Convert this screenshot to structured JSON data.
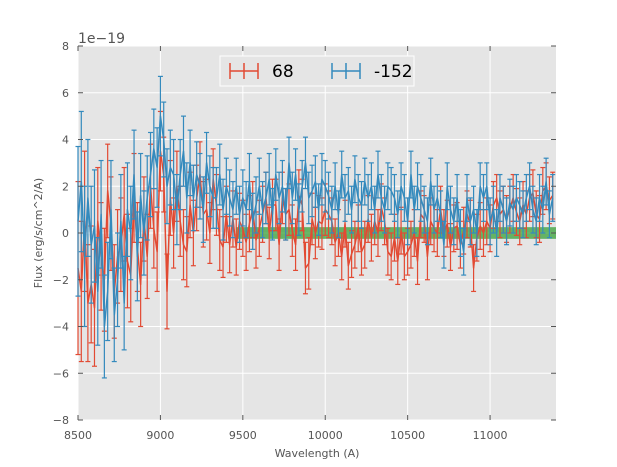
{
  "chart_data": {
    "type": "line",
    "style": "errorbar",
    "title": "",
    "xlabel": "Wavelength (A)",
    "ylabel": "Flux (erg/s/cm^2/A)",
    "y_offset_label": "1e−19",
    "xlim": [
      8500,
      11400
    ],
    "ylim": [
      -8,
      8
    ],
    "xticks": [
      8500,
      9000,
      9500,
      10000,
      10500,
      11000
    ],
    "xtick_labels": [
      "8500",
      "9000",
      "9500",
      "10000",
      "10500",
      "11000"
    ],
    "yticks": [
      -8,
      -6,
      -4,
      -2,
      0,
      2,
      4,
      6,
      8
    ],
    "ytick_labels": [
      "−8",
      "−6",
      "−4",
      "−2",
      "0",
      "2",
      "4",
      "6",
      "8"
    ],
    "grid": true,
    "legend_position": "top-center",
    "x": [
      8500,
      8520,
      8540,
      8560,
      8580,
      8600,
      8620,
      8640,
      8660,
      8680,
      8700,
      8720,
      8740,
      8760,
      8780,
      8800,
      8820,
      8840,
      8860,
      8880,
      8900,
      8920,
      8940,
      8960,
      8980,
      9000,
      9020,
      9040,
      9060,
      9080,
      9100,
      9120,
      9140,
      9160,
      9180,
      9200,
      9220,
      9240,
      9260,
      9280,
      9300,
      9320,
      9340,
      9360,
      9380,
      9400,
      9420,
      9440,
      9460,
      9480,
      9500,
      9520,
      9540,
      9560,
      9580,
      9600,
      9620,
      9640,
      9660,
      9680,
      9700,
      9720,
      9740,
      9760,
      9780,
      9800,
      9820,
      9840,
      9860,
      9880,
      9900,
      9920,
      9940,
      9960,
      9980,
      10000,
      10020,
      10040,
      10060,
      10080,
      10100,
      10120,
      10140,
      10160,
      10180,
      10200,
      10220,
      10240,
      10260,
      10280,
      10300,
      10320,
      10340,
      10360,
      10380,
      10400,
      10420,
      10440,
      10460,
      10480,
      10500,
      10520,
      10540,
      10560,
      10580,
      10600,
      10620,
      10640,
      10660,
      10680,
      10700,
      10720,
      10740,
      10760,
      10780,
      10800,
      10820,
      10840,
      10860,
      10880,
      10900,
      10920,
      10940,
      10960,
      10980,
      11000,
      11020,
      11040,
      11060,
      11080,
      11100,
      11120,
      11140,
      11160,
      11180,
      11200,
      11220,
      11240,
      11260,
      11280,
      11300,
      11320,
      11340,
      11360,
      11380
    ],
    "series": [
      {
        "name": "68",
        "color": "#E24A33",
        "values": [
          -1.5,
          -2.5,
          0.5,
          -3.0,
          -2.2,
          -3.2,
          0.5,
          -1.0,
          -2.0,
          1.8,
          0.4,
          -2.5,
          -1.0,
          -0.5,
          0.8,
          -1.2,
          -1.8,
          1.5,
          -0.6,
          -2.2,
          0.6,
          -1.0,
          2.0,
          0.2,
          -0.8,
          3.5,
          2.5,
          -2.5,
          1.5,
          0.0,
          2.0,
          0.5,
          -0.5,
          -0.8,
          1.2,
          0.0,
          1.5,
          2.5,
          0.8,
          1.0,
          0.0,
          2.3,
          1.2,
          -0.3,
          -0.6,
          0.8,
          -0.5,
          0.6,
          -0.6,
          0.5,
          0.2,
          -0.4,
          0.4,
          1.0,
          -0.3,
          0.2,
          0.8,
          1.5,
          0.0,
          1.2,
          1.2,
          -0.5,
          1.5,
          0.8,
          1.0,
          0.1,
          -0.5,
          1.6,
          1.2,
          -1.5,
          -1.3,
          0.6,
          0.0,
          0.5,
          0.4,
          1.0,
          0.8,
          0.5,
          -0.4,
          0.0,
          -1.0,
          0.4,
          -1.4,
          -0.9,
          -0.5,
          0.2,
          -0.8,
          -0.5,
          0.6,
          -0.2,
          0.5,
          0.0,
          1.1,
          0.5,
          -0.8,
          -1.0,
          -0.2,
          -1.2,
          0.1,
          -1.0,
          -0.8,
          -0.5,
          0.0,
          -1.2,
          0.8,
          0.6,
          -1.0,
          0.5,
          0.2,
          0.0,
          1.0,
          0.0,
          0.4,
          -0.6,
          0.2,
          0.3,
          -0.5,
          0.1,
          0.8,
          0.4,
          -1.5,
          -0.2,
          0.3,
          0.0,
          0.5,
          0.2,
          1.2,
          1.5,
          0.8,
          1.0,
          0.6,
          1.0,
          1.5,
          0.9,
          0.5,
          1.2,
          0.8,
          1.5,
          1.7,
          0.8,
          0.6,
          1.8,
          2.0,
          1.4,
          1.6
        ],
        "errors": [
          3.7,
          3.0,
          3.0,
          2.5,
          2.5,
          2.5,
          2.3,
          2.3,
          2.2,
          2.0,
          2.0,
          2.0,
          2.0,
          2.0,
          2.0,
          2.0,
          2.0,
          1.9,
          1.9,
          1.8,
          1.8,
          1.8,
          1.8,
          1.7,
          1.7,
          1.7,
          1.6,
          1.6,
          1.6,
          1.5,
          1.5,
          1.5,
          1.5,
          1.5,
          1.4,
          1.4,
          1.4,
          1.4,
          1.4,
          1.3,
          1.3,
          1.3,
          1.3,
          1.3,
          1.3,
          1.2,
          1.2,
          1.2,
          1.2,
          1.2,
          1.2,
          1.2,
          1.2,
          1.2,
          1.2,
          1.2,
          1.2,
          1.1,
          1.1,
          1.1,
          1.1,
          1.1,
          1.1,
          1.1,
          1.1,
          1.1,
          1.1,
          1.1,
          1.1,
          1.1,
          1.1,
          1.1,
          1.1,
          1.1,
          1.1,
          1.1,
          1.0,
          1.0,
          1.0,
          1.0,
          1.0,
          1.0,
          1.0,
          1.0,
          1.0,
          1.0,
          1.0,
          1.0,
          1.0,
          1.0,
          1.0,
          1.0,
          1.0,
          1.0,
          1.0,
          1.0,
          1.0,
          1.0,
          1.0,
          1.0,
          1.0,
          1.0,
          1.0,
          1.0,
          1.0,
          1.0,
          1.0,
          1.0,
          1.0,
          1.0,
          1.0,
          1.0,
          1.0,
          1.0,
          1.0,
          1.0,
          1.0,
          1.0,
          1.0,
          1.0,
          1.0,
          1.0,
          1.0,
          1.0,
          1.0,
          1.0,
          1.0,
          1.0,
          1.0,
          1.0,
          1.0,
          1.0,
          1.0,
          1.0,
          1.0,
          1.0,
          1.0,
          1.0,
          1.0,
          1.0,
          1.0,
          1.0,
          1.0,
          1.0,
          1.0
        ]
      },
      {
        "name": "-152",
        "color": "#348ABD",
        "values": [
          0.5,
          2.2,
          -1.0,
          1.5,
          -0.5,
          0.3,
          -2.5,
          0.8,
          -4.0,
          -2.5,
          1.0,
          -3.5,
          -2.0,
          0.5,
          -3.0,
          1.0,
          0.0,
          2.5,
          -1.0,
          1.6,
          0.0,
          1.5,
          2.5,
          3.6,
          2.8,
          5.0,
          4.0,
          2.0,
          2.8,
          2.5,
          1.0,
          2.5,
          3.5,
          1.5,
          3.0,
          1.5,
          2.5,
          2.0,
          1.0,
          3.0,
          2.0,
          1.5,
          1.5,
          2.5,
          1.0,
          2.0,
          1.5,
          1.0,
          2.0,
          0.8,
          1.5,
          1.0,
          2.2,
          0.5,
          1.2,
          2.0,
          1.0,
          1.5,
          2.3,
          0.8,
          2.5,
          1.5,
          2.0,
          0.8,
          3.0,
          1.5,
          2.5,
          1.0,
          2.0,
          3.0,
          1.5,
          1.8,
          2.2,
          1.0,
          2.3,
          2.0,
          1.6,
          1.0,
          2.0,
          0.8,
          2.5,
          1.5,
          1.8,
          1.0,
          2.3,
          1.5,
          1.2,
          2.2,
          1.5,
          2.0,
          1.0,
          2.5,
          1.5,
          1.0,
          2.0,
          1.8,
          1.5,
          0.8,
          2.0,
          1.5,
          0.5,
          2.5,
          1.0,
          2.0,
          1.5,
          1.0,
          0.5,
          2.2,
          1.0,
          1.5,
          0.8,
          -0.5,
          2.0,
          1.0,
          0.5,
          1.5,
          0.0,
          -0.8,
          1.5,
          0.5,
          1.0,
          0.0,
          2.0,
          1.5,
          2.0,
          0.5,
          1.0,
          0.0,
          1.5,
          1.0,
          0.5,
          1.3,
          1.0,
          1.5,
          1.2,
          0.8,
          1.5,
          2.0,
          1.0,
          0.5,
          1.5,
          1.0,
          2.2,
          0.8,
          1.5
        ],
        "errors": [
          3.2,
          3.0,
          3.0,
          2.5,
          2.5,
          2.4,
          2.3,
          2.3,
          2.2,
          2.1,
          2.1,
          2.0,
          2.0,
          2.0,
          2.0,
          2.0,
          2.0,
          1.9,
          1.9,
          1.8,
          1.8,
          1.8,
          1.8,
          1.7,
          1.7,
          1.7,
          1.6,
          1.6,
          1.6,
          1.5,
          1.5,
          1.5,
          1.5,
          1.5,
          1.4,
          1.4,
          1.4,
          1.4,
          1.4,
          1.3,
          1.3,
          1.3,
          1.3,
          1.3,
          1.3,
          1.2,
          1.2,
          1.2,
          1.2,
          1.2,
          1.2,
          1.2,
          1.2,
          1.2,
          1.2,
          1.2,
          1.2,
          1.1,
          1.1,
          1.1,
          1.1,
          1.1,
          1.1,
          1.1,
          1.1,
          1.1,
          1.1,
          1.1,
          1.1,
          1.1,
          1.1,
          1.1,
          1.1,
          1.1,
          1.1,
          1.1,
          1.0,
          1.0,
          1.0,
          1.0,
          1.0,
          1.0,
          1.0,
          1.0,
          1.0,
          1.0,
          1.0,
          1.0,
          1.0,
          1.0,
          1.0,
          1.0,
          1.0,
          1.0,
          1.0,
          1.0,
          1.0,
          1.0,
          1.0,
          1.0,
          1.0,
          1.0,
          1.0,
          1.0,
          1.0,
          1.0,
          1.0,
          1.0,
          1.0,
          1.0,
          1.0,
          1.0,
          1.0,
          1.0,
          1.0,
          1.0,
          1.0,
          1.0,
          1.0,
          1.0,
          1.0,
          1.0,
          1.0,
          1.0,
          1.0,
          1.0,
          1.0,
          1.0,
          1.0,
          1.0,
          1.0,
          1.0,
          1.0,
          1.0,
          1.0,
          1.0,
          1.0,
          1.0,
          1.0,
          1.0,
          1.0,
          1.0,
          1.0,
          1.0,
          1.0
        ]
      }
    ],
    "bands": [
      {
        "x_range": [
          9460,
          11400
        ],
        "y_range": [
          -0.25,
          0.25
        ],
        "color": "#2E9E2E",
        "opacity": 0.7
      }
    ]
  }
}
